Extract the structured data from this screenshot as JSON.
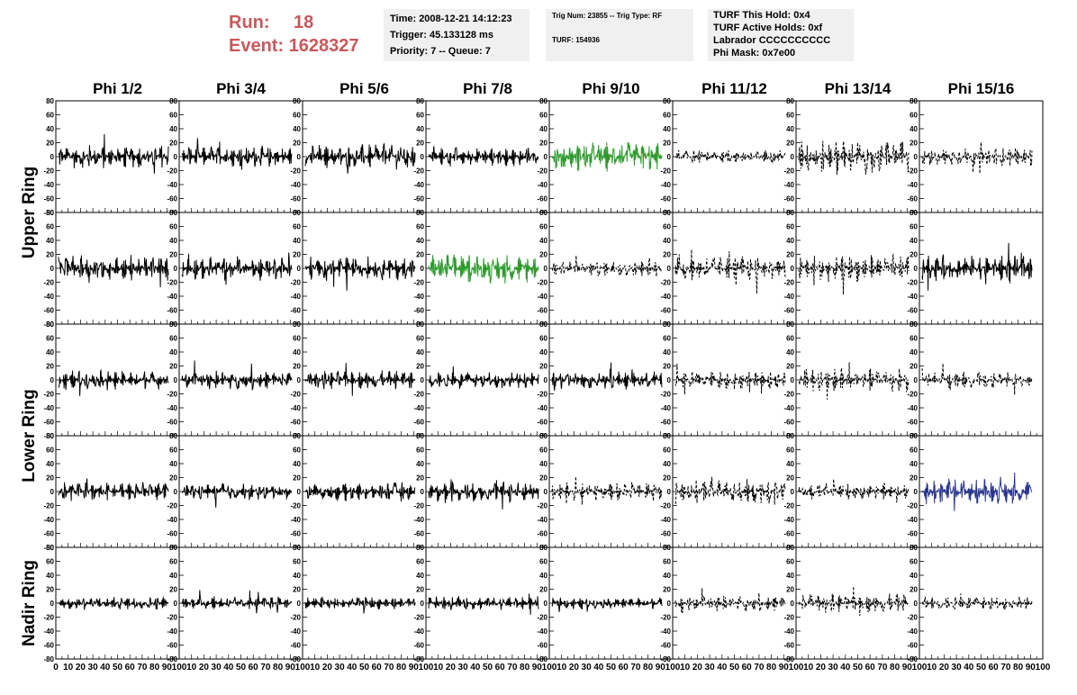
{
  "header": {
    "run_label": "Run:",
    "run_value": "18",
    "event_label": "Event:",
    "event_value": "1628327",
    "time": "Time: 2008-12-21 14:12:23",
    "trigger": "Trigger: 45.133128 ms",
    "priority": "Priority: 7 -- Queue: 7",
    "trig_num": "Trig Num: 23855 -- Trig Type: RF",
    "turf": "TURF: 154936",
    "turf_this_hold": "TURF This Hold: 0x4",
    "turf_active_holds": "TURF Active Holds: 0xf",
    "labrador": "Labrador CCCCCCCCCC",
    "phi_mask": "Phi Mask: 0x7e00"
  },
  "chart_data": {
    "type": "line",
    "columns": [
      "Phi 1/2",
      "Phi 3/4",
      "Phi 5/6",
      "Phi 7/8",
      "Phi 9/10",
      "Phi 11/12",
      "Phi 13/14",
      "Phi 15/16"
    ],
    "rows": [
      "Upper Ring",
      "Upper Ring",
      "Lower Ring",
      "Lower Ring",
      "Nadir Ring"
    ],
    "ring_labels": [
      {
        "text": "Upper Ring",
        "rows": [
          0,
          1
        ]
      },
      {
        "text": "Lower Ring",
        "rows": [
          2,
          3
        ]
      },
      {
        "text": "Nadir Ring",
        "rows": [
          4
        ]
      }
    ],
    "ylim": [
      -80,
      80
    ],
    "yticks": [
      "80",
      "60",
      "40",
      "20",
      "0",
      "-20",
      "-40",
      "-60",
      "-80"
    ],
    "xlim": [
      0,
      100
    ],
    "xticks_first": [
      "0",
      "10",
      "20",
      "30",
      "40",
      "50",
      "60",
      "70",
      "80",
      "90",
      "100"
    ],
    "xticks_inner": [
      "10",
      "20",
      "30",
      "40",
      "50",
      "60",
      "70",
      "80",
      "90",
      "100"
    ],
    "colors": {
      "normal": "#000000",
      "triggered": "#2e9a2e",
      "nadir_triggered": "#2a3590"
    },
    "styles": [
      [
        "solid",
        "solid",
        "solid",
        "solid",
        "green",
        "dashed",
        "dashed",
        "dashed"
      ],
      [
        "solid",
        "solid",
        "solid",
        "green",
        "dashed",
        "dashed",
        "dashed",
        "solid"
      ],
      [
        "solid",
        "solid",
        "solid",
        "solid",
        "solid",
        "dashed",
        "dashed",
        "dashed"
      ],
      [
        "solid",
        "solid",
        "solid",
        "solid",
        "dashed",
        "dashed",
        "dashed",
        "blue"
      ],
      [
        "solid",
        "solid",
        "solid",
        "solid",
        "solid",
        "dashed",
        "dashed",
        "dashed"
      ]
    ],
    "amplitudes": [
      [
        18,
        16,
        18,
        14,
        22,
        10,
        26,
        14
      ],
      [
        20,
        18,
        18,
        22,
        12,
        18,
        20,
        20
      ],
      [
        14,
        14,
        14,
        12,
        14,
        14,
        18,
        12
      ],
      [
        14,
        12,
        14,
        16,
        14,
        18,
        12,
        20
      ],
      [
        10,
        10,
        10,
        10,
        8,
        12,
        14,
        10
      ]
    ]
  }
}
